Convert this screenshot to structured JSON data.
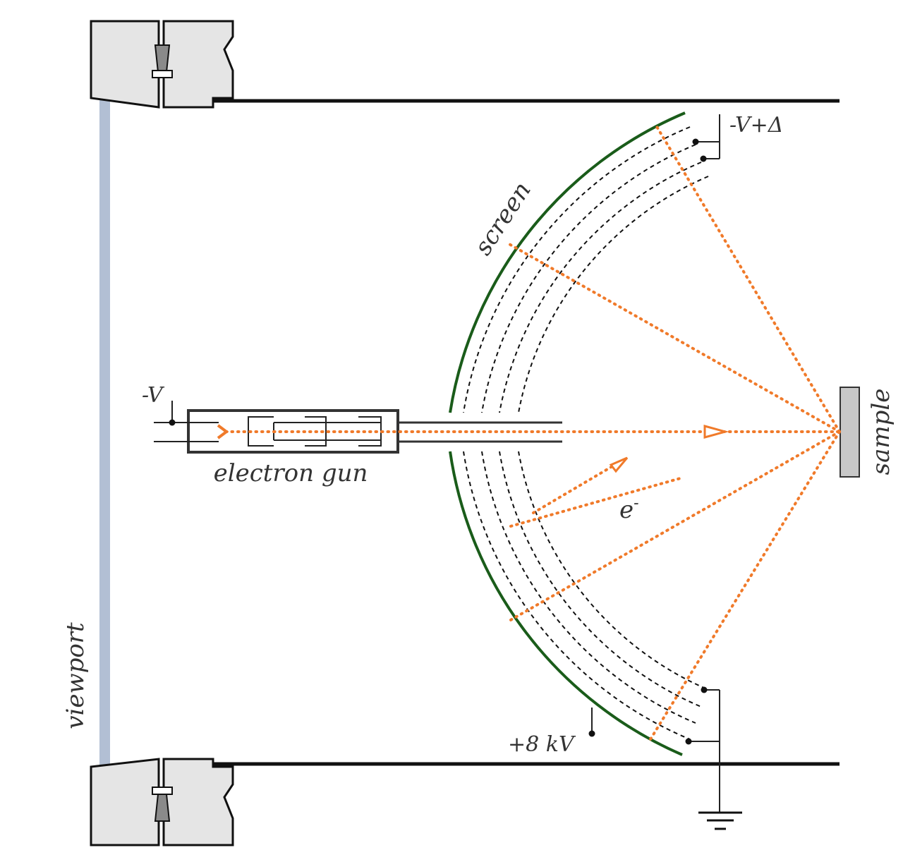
{
  "labels": {
    "viewport": "viewport",
    "screen": "screen",
    "electron_gun": "electron gun",
    "sample": "sample",
    "gun_voltage": "-V",
    "grid_voltage": "-V+Δ",
    "screen_voltage": "+8 kV",
    "electron": "e",
    "electron_superscript": "-"
  },
  "colors": {
    "screen": "#1a5c1a",
    "beam": "#f07a2a",
    "viewport_window": "#b2bfd4",
    "sample": "#c8c8c8",
    "flange": "#e5e5e5",
    "text": "#333333"
  }
}
